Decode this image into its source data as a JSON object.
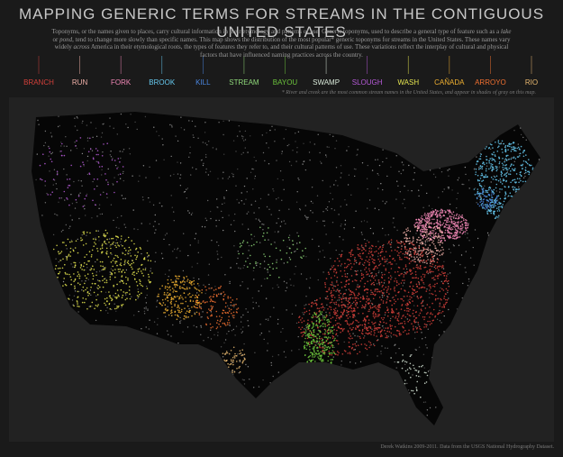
{
  "title": "MAPPING GENERIC TERMS FOR STREAMS IN THE CONTIGUOUS UNITED STATES",
  "intro": [
    "Toponyms, or the names given to places, carry cultural information in their etymology and patterns of use. Generic toponyms, used to describe a general type of feature such as a ",
    "lake",
    " or ",
    "pond",
    ", tend to change more slowly than specific names. This map shows the distribution of the most popular* generic toponyms for streams in the United States. These names vary widely ",
    "across",
    " America in their etymological roots, the types of features they refer to, and their cultural patterns of use. These variations reflect the interplay of cultural and physical factors that have influenced naming practices across the country."
  ],
  "legend": [
    {
      "name": "BRANCH",
      "color": "#d2403a"
    },
    {
      "name": "RUN",
      "color": "#f0b0a8"
    },
    {
      "name": "FORK",
      "color": "#ee86b4"
    },
    {
      "name": "BROOK",
      "color": "#66c8ee"
    },
    {
      "name": "KILL",
      "color": "#4a86e0"
    },
    {
      "name": "STREAM",
      "color": "#8fd87a"
    },
    {
      "name": "BAYOU",
      "color": "#6cc43c"
    },
    {
      "name": "SWAMP",
      "color": "#d8e8d8"
    },
    {
      "name": "SLOUGH",
      "color": "#b65ad8"
    },
    {
      "name": "WASH",
      "color": "#e6e650"
    },
    {
      "name": "CAÑADA",
      "color": "#f0b030"
    },
    {
      "name": "ARROYO",
      "color": "#f07030"
    },
    {
      "name": "RIO",
      "color": "#e8b870"
    }
  ],
  "footnote": "* River and creek are the most common stream names in the United States, and appear in shades of gray on this map.",
  "credit": "Derek Watkins 2009-2011. Data from the USGS National Hydrography Dataset."
}
